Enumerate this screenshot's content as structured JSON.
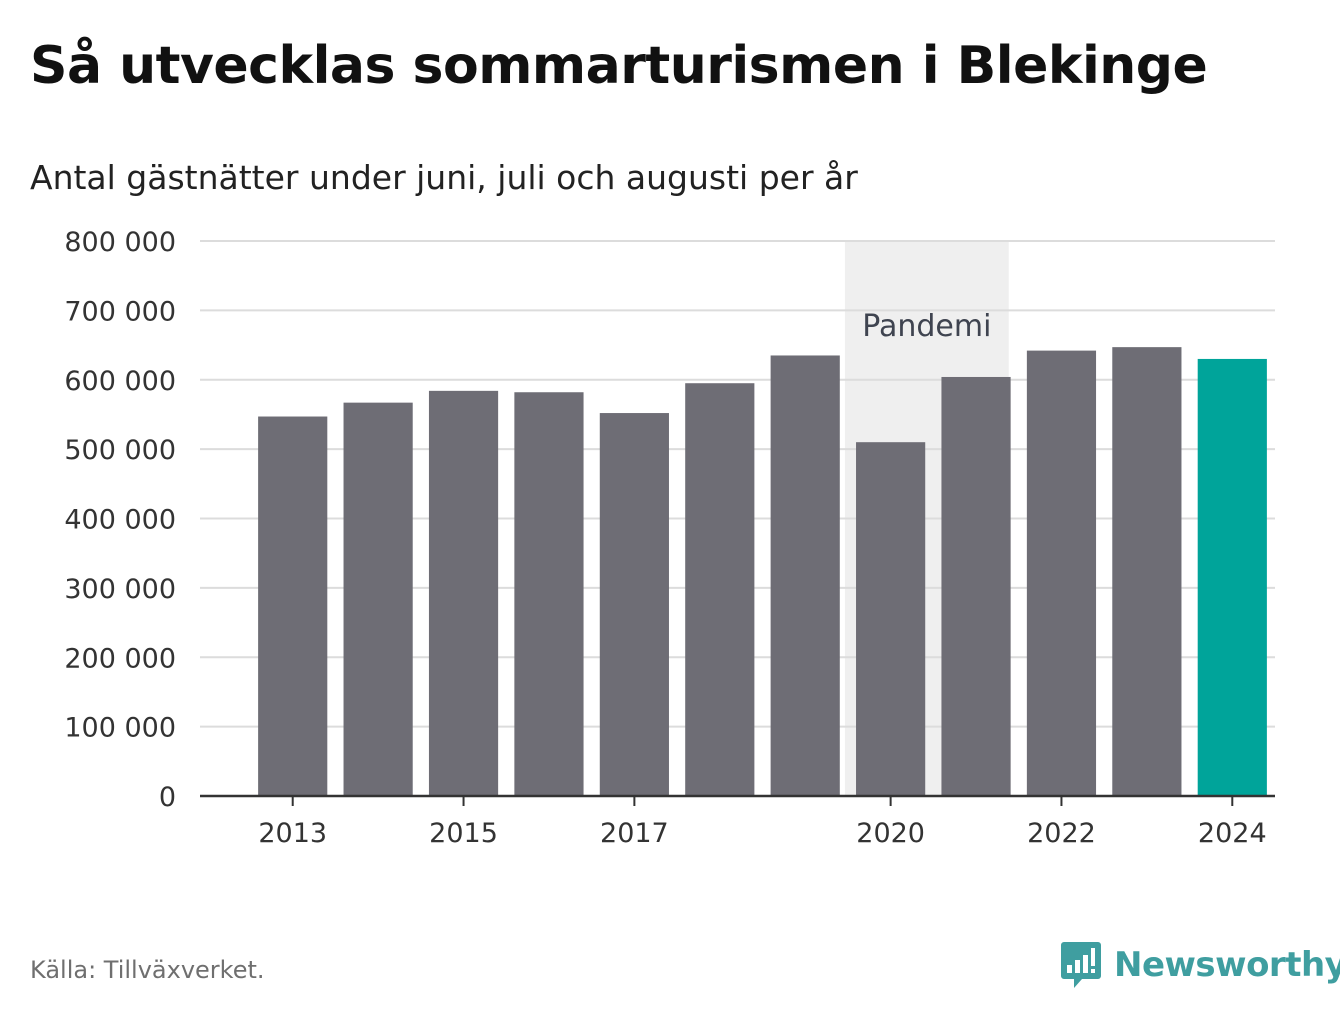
{
  "title": "Så utvecklas sommarturismen i Blekinge",
  "subtitle": "Antal gästnätter under juni, juli och augusti per år",
  "source": "Källa: Tillväxverket.",
  "brand": "Newsworthy",
  "colors": {
    "bar": "#6e6d75",
    "highlight": "#00a49a",
    "band": "#efefef",
    "grid": "#dcdcdc",
    "axis": "#333333",
    "brand": "#3f9ea0"
  },
  "chart_data": {
    "type": "bar",
    "title": "Så utvecklas sommarturismen i Blekinge",
    "subtitle": "Antal gästnätter under juni, juli och augusti per år",
    "xlabel": "",
    "ylabel": "",
    "categories": [
      "2013",
      "2014",
      "2015",
      "2016",
      "2017",
      "2018",
      "2019",
      "2020",
      "2021",
      "2022",
      "2023",
      "2024"
    ],
    "values": [
      547000,
      567000,
      584000,
      582000,
      552000,
      595000,
      635000,
      510000,
      604000,
      642000,
      647000,
      630000
    ],
    "highlight_category": "2024",
    "ylim": [
      0,
      800000
    ],
    "yticks": [
      0,
      100000,
      200000,
      300000,
      400000,
      500000,
      600000,
      700000,
      800000
    ],
    "ytick_labels": [
      "0",
      "100 000",
      "200 000",
      "300 000",
      "400 000",
      "500 000",
      "600 000",
      "700 000",
      "800 000"
    ],
    "xtick_labels": [
      "2013",
      "2015",
      "2017",
      "2020",
      "2022",
      "2024"
    ],
    "grid": true,
    "annotation": {
      "label": "Pandemi",
      "from": "2020",
      "to": "2021"
    }
  }
}
